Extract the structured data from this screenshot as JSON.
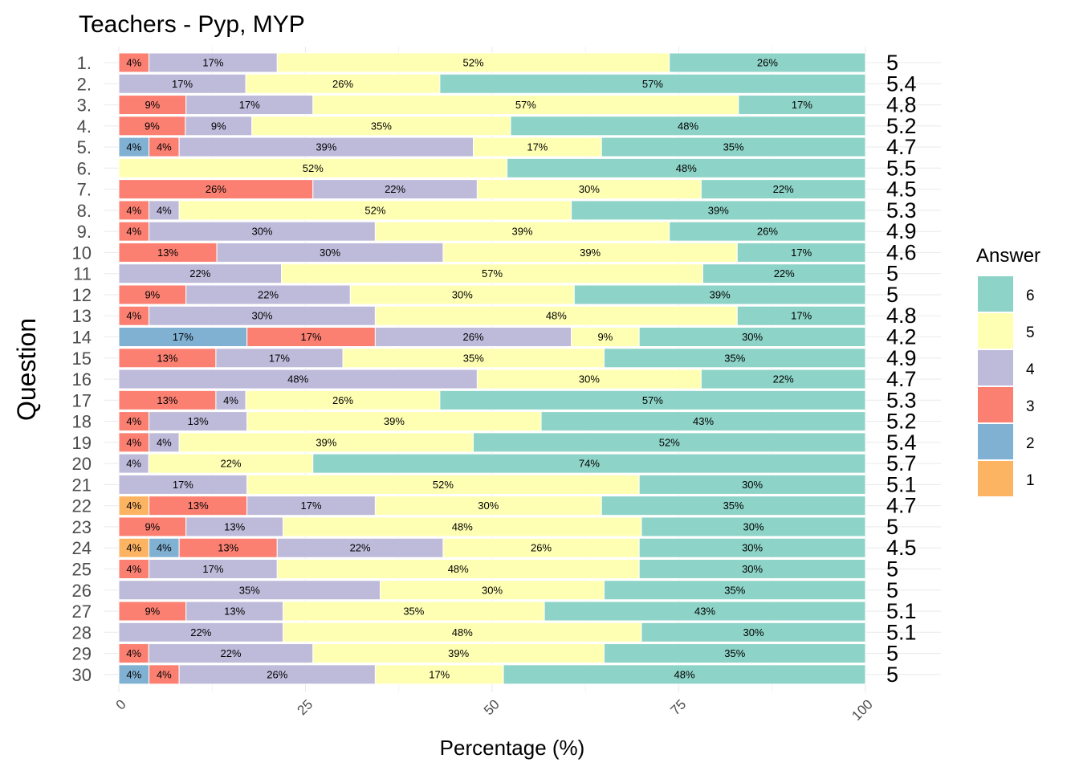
{
  "chart_data": {
    "type": "bar",
    "orientation": "horizontal-stacked",
    "title": "Teachers - Pyp, MYP",
    "xlabel": "Percentage (%)",
    "ylabel": "Question",
    "xlim": [
      0,
      100
    ],
    "x_ticks": [
      "0",
      "25",
      "50",
      "75",
      "100"
    ],
    "grid": true,
    "legend": {
      "title": "Answer",
      "position": "right",
      "items": [
        {
          "label": "6",
          "color": "#8DD3C7"
        },
        {
          "label": "5",
          "color": "#FFFFB3"
        },
        {
          "label": "4",
          "color": "#BEBADA"
        },
        {
          "label": "3",
          "color": "#FB8072"
        },
        {
          "label": "2",
          "color": "#80B1D3"
        },
        {
          "label": "1",
          "color": "#FDB462"
        }
      ]
    },
    "stack_order": [
      "1",
      "2",
      "3",
      "4",
      "5",
      "6"
    ],
    "colors": {
      "1": "#FDB462",
      "2": "#80B1D3",
      "3": "#FB8072",
      "4": "#BEBADA",
      "5": "#FFFFB3",
      "6": "#8DD3C7"
    },
    "questions": [
      {
        "label": "1.",
        "mean": "5",
        "values": {
          "3": 4,
          "4": 17,
          "5": 52,
          "6": 26
        }
      },
      {
        "label": "2.",
        "mean": "5.4",
        "values": {
          "4": 17,
          "5": 26,
          "6": 57
        }
      },
      {
        "label": "3.",
        "mean": "4.8",
        "values": {
          "3": 9,
          "4": 17,
          "5": 57,
          "6": 17
        }
      },
      {
        "label": "4.",
        "mean": "5.2",
        "values": {
          "3": 9,
          "4": 9,
          "5": 35,
          "6": 48
        }
      },
      {
        "label": "5.",
        "mean": "4.7",
        "values": {
          "2": 4,
          "3": 4,
          "4": 39,
          "5": 17,
          "6": 35
        }
      },
      {
        "label": "6.",
        "mean": "5.5",
        "values": {
          "5": 52,
          "6": 48
        }
      },
      {
        "label": "7.",
        "mean": "4.5",
        "values": {
          "3": 26,
          "4": 22,
          "5": 30,
          "6": 22
        }
      },
      {
        "label": "8.",
        "mean": "5.3",
        "values": {
          "3": 4,
          "4": 4,
          "5": 52,
          "6": 39
        }
      },
      {
        "label": "9.",
        "mean": "4.9",
        "values": {
          "3": 4,
          "4": 30,
          "5": 39,
          "6": 26
        }
      },
      {
        "label": "10",
        "mean": "4.6",
        "values": {
          "3": 13,
          "4": 30,
          "5": 39,
          "6": 17
        }
      },
      {
        "label": "11",
        "mean": "5",
        "values": {
          "4": 22,
          "5": 57,
          "6": 22
        }
      },
      {
        "label": "12",
        "mean": "5",
        "values": {
          "3": 9,
          "4": 22,
          "5": 30,
          "6": 39
        }
      },
      {
        "label": "13",
        "mean": "4.8",
        "values": {
          "3": 4,
          "4": 30,
          "5": 48,
          "6": 17
        }
      },
      {
        "label": "14",
        "mean": "4.2",
        "values": {
          "2": 17,
          "3": 17,
          "4": 26,
          "5": 9,
          "6": 30
        }
      },
      {
        "label": "15",
        "mean": "4.9",
        "values": {
          "3": 13,
          "4": 17,
          "5": 35,
          "6": 35
        }
      },
      {
        "label": "16",
        "mean": "4.7",
        "values": {
          "4": 48,
          "5": 30,
          "6": 22
        }
      },
      {
        "label": "17",
        "mean": "5.3",
        "values": {
          "3": 13,
          "4": 4,
          "5": 26,
          "6": 57
        }
      },
      {
        "label": "18",
        "mean": "5.2",
        "values": {
          "3": 4,
          "4": 13,
          "5": 39,
          "6": 43
        }
      },
      {
        "label": "19",
        "mean": "5.4",
        "values": {
          "3": 4,
          "4": 4,
          "5": 39,
          "6": 52
        }
      },
      {
        "label": "20",
        "mean": "5.7",
        "values": {
          "4": 4,
          "5": 22,
          "6": 74
        }
      },
      {
        "label": "21",
        "mean": "5.1",
        "values": {
          "4": 17,
          "5": 52,
          "6": 30
        }
      },
      {
        "label": "22",
        "mean": "4.7",
        "values": {
          "1": 4,
          "3": 13,
          "4": 17,
          "5": 30,
          "6": 35
        }
      },
      {
        "label": "23",
        "mean": "5",
        "values": {
          "3": 9,
          "4": 13,
          "5": 48,
          "6": 30
        }
      },
      {
        "label": "24",
        "mean": "4.5",
        "values": {
          "1": 4,
          "2": 4,
          "3": 13,
          "4": 22,
          "5": 26,
          "6": 30
        }
      },
      {
        "label": "25",
        "mean": "5",
        "values": {
          "3": 4,
          "4": 17,
          "5": 48,
          "6": 30
        }
      },
      {
        "label": "26",
        "mean": "5",
        "values": {
          "4": 35,
          "5": 30,
          "6": 35
        }
      },
      {
        "label": "27",
        "mean": "5.1",
        "values": {
          "3": 9,
          "4": 13,
          "5": 35,
          "6": 43
        }
      },
      {
        "label": "28",
        "mean": "5.1",
        "values": {
          "4": 22,
          "5": 48,
          "6": 30
        }
      },
      {
        "label": "29",
        "mean": "5",
        "values": {
          "3": 4,
          "4": 22,
          "5": 39,
          "6": 35
        }
      },
      {
        "label": "30",
        "mean": "5",
        "values": {
          "2": 4,
          "3": 4,
          "4": 26,
          "5": 17,
          "6": 48
        }
      }
    ]
  }
}
